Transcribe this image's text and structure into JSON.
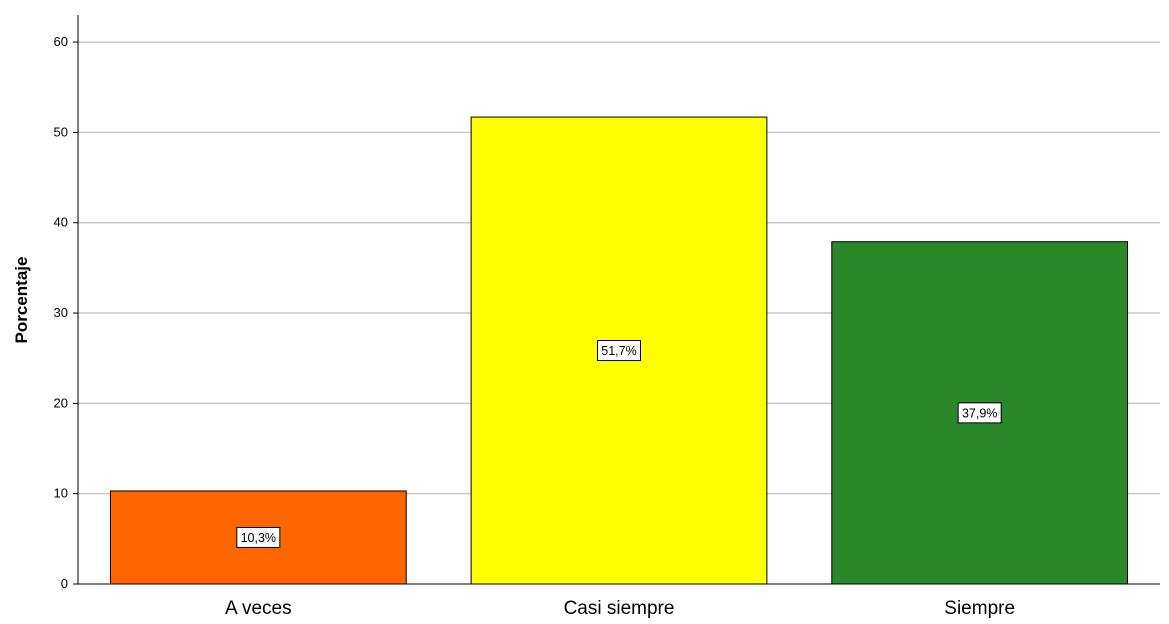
{
  "chart_data": {
    "type": "bar",
    "ylabel": "Porcentaje",
    "xlabel": "",
    "categories": [
      "A veces",
      "Casi siempre",
      "Siempre"
    ],
    "values": [
      10.3,
      51.7,
      37.9
    ],
    "data_labels": [
      "10,3%",
      "51,7%",
      "37,9%"
    ],
    "colors": [
      "#ff6600",
      "#ffff00",
      "#2a872a"
    ],
    "ylim": [
      0,
      63
    ],
    "yticks": [
      0,
      10,
      20,
      30,
      40,
      50,
      60
    ],
    "grid": true,
    "legend": "none"
  }
}
